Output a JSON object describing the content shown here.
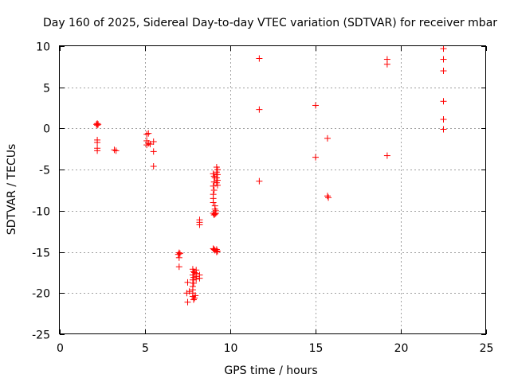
{
  "chart_data": {
    "type": "scatter",
    "title": "Day 160 of 2025, Sidereal Day-to-day VTEC variation (SDTVAR) for receiver mbar",
    "xlabel": "GPS time / hours",
    "ylabel": "SDTVAR / TECUs",
    "xlim": [
      0,
      25
    ],
    "ylim": [
      -25,
      10
    ],
    "xticks": [
      0,
      5,
      10,
      15,
      20,
      25
    ],
    "yticks": [
      -25,
      -20,
      -15,
      -10,
      -5,
      0,
      5,
      10
    ],
    "grid": true,
    "marker": "+",
    "color": "#ff0000",
    "series": [
      {
        "name": "SDTVAR",
        "points": [
          [
            2.2,
            0.6
          ],
          [
            2.2,
            0.4
          ],
          [
            2.25,
            0.5
          ],
          [
            2.15,
            0.5
          ],
          [
            2.2,
            -1.4
          ],
          [
            2.2,
            -1.7
          ],
          [
            2.2,
            -2.4
          ],
          [
            2.2,
            -2.7
          ],
          [
            3.2,
            -2.6
          ],
          [
            3.3,
            -2.7
          ],
          [
            5.1,
            -0.7
          ],
          [
            5.2,
            -0.6
          ],
          [
            5.1,
            -1.5
          ],
          [
            5.2,
            -1.8
          ],
          [
            5.1,
            -2.0
          ],
          [
            5.3,
            -1.9
          ],
          [
            5.5,
            -1.6
          ],
          [
            5.5,
            -2.8
          ],
          [
            5.5,
            -4.6
          ],
          [
            7.0,
            -15.1
          ],
          [
            6.95,
            -15.3
          ],
          [
            7.05,
            -15.2
          ],
          [
            7.0,
            -15.7
          ],
          [
            7.0,
            -16.8
          ],
          [
            7.5,
            -18.7
          ],
          [
            7.45,
            -20.0
          ],
          [
            7.5,
            -21.1
          ],
          [
            7.6,
            -19.8
          ],
          [
            7.8,
            -17.1
          ],
          [
            7.85,
            -17.4
          ],
          [
            7.9,
            -17.5
          ],
          [
            7.8,
            -17.8
          ],
          [
            7.85,
            -18.1
          ],
          [
            7.8,
            -18.4
          ],
          [
            7.85,
            -18.8
          ],
          [
            7.8,
            -19.2
          ],
          [
            7.8,
            -19.6
          ],
          [
            7.8,
            -20.0
          ],
          [
            7.8,
            -20.4
          ],
          [
            7.9,
            -20.6
          ],
          [
            7.85,
            -20.8
          ],
          [
            7.95,
            -20.3
          ],
          [
            8.0,
            -17.2
          ],
          [
            8.0,
            -17.6
          ],
          [
            8.0,
            -18.0
          ],
          [
            8.0,
            -18.3
          ],
          [
            8.2,
            -11.1
          ],
          [
            8.2,
            -11.4
          ],
          [
            8.2,
            -11.7
          ],
          [
            8.2,
            -17.8
          ],
          [
            8.2,
            -18.2
          ],
          [
            9.0,
            -14.6
          ],
          [
            9.05,
            -14.7
          ],
          [
            9.1,
            -14.8
          ],
          [
            9.0,
            -10.3
          ],
          [
            9.05,
            -10.5
          ],
          [
            9.1,
            -10.4
          ],
          [
            9.15,
            -10.3
          ],
          [
            9.0,
            -5.5
          ],
          [
            9.05,
            -5.8
          ],
          [
            9.1,
            -6.0
          ],
          [
            9.05,
            -6.5
          ],
          [
            9.0,
            -7.0
          ],
          [
            9.05,
            -7.5
          ],
          [
            9.0,
            -8.0
          ],
          [
            9.0,
            -8.5
          ],
          [
            9.0,
            -9.0
          ],
          [
            9.1,
            -9.4
          ],
          [
            9.1,
            -9.8
          ],
          [
            9.15,
            -10.0
          ],
          [
            9.2,
            -4.7
          ],
          [
            9.25,
            -5.0
          ],
          [
            9.2,
            -5.3
          ],
          [
            9.25,
            -5.6
          ],
          [
            9.2,
            -6.0
          ],
          [
            9.25,
            -6.3
          ],
          [
            9.2,
            -6.6
          ],
          [
            9.25,
            -6.9
          ],
          [
            9.2,
            -14.7
          ],
          [
            9.25,
            -14.9
          ],
          [
            9.2,
            -15.0
          ],
          [
            11.7,
            8.5
          ],
          [
            11.7,
            2.3
          ],
          [
            11.7,
            -6.4
          ],
          [
            15.0,
            2.8
          ],
          [
            15.0,
            -3.5
          ],
          [
            15.7,
            -1.2
          ],
          [
            15.7,
            -8.2
          ],
          [
            15.75,
            -8.4
          ],
          [
            19.2,
            8.4
          ],
          [
            19.2,
            7.8
          ],
          [
            19.2,
            -3.3
          ],
          [
            22.5,
            9.7
          ],
          [
            22.5,
            8.4
          ],
          [
            22.5,
            7.0
          ],
          [
            22.5,
            3.3
          ],
          [
            22.5,
            1.1
          ],
          [
            22.5,
            -0.1
          ]
        ]
      }
    ]
  }
}
